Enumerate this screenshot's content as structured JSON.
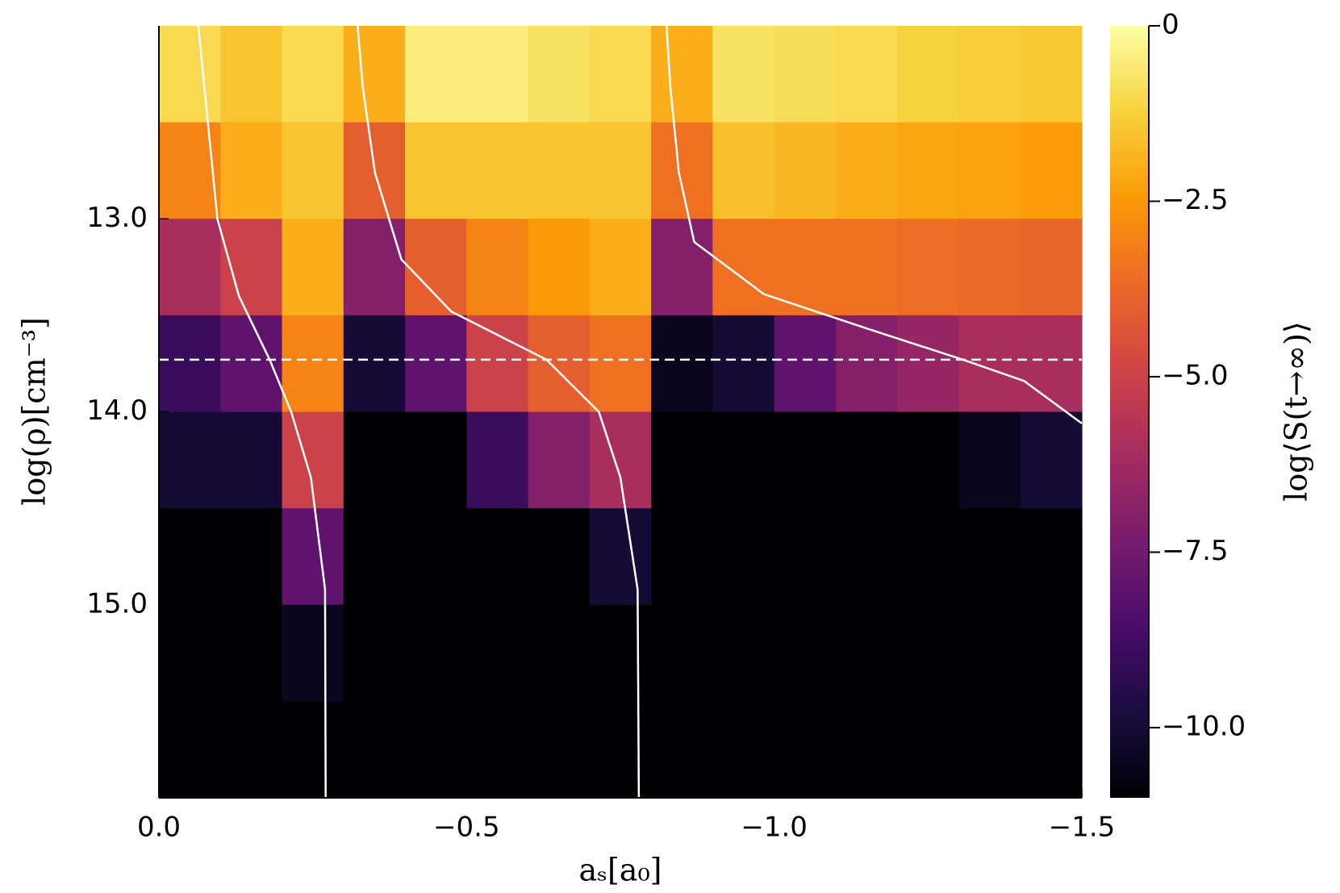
{
  "chart_data": {
    "type": "heatmap",
    "xlabel": "aₛ[a₀]",
    "ylabel": "log(ρ)[cm⁻³]",
    "colorbar_label": "log⟨S(t→∞)⟩",
    "xlim": [
      0,
      -1.5
    ],
    "xticks": [
      {
        "value": 0,
        "label": "0.0"
      },
      {
        "value": -0.5,
        "label": "−0.5"
      },
      {
        "value": -1.0,
        "label": "−1.0"
      },
      {
        "value": -1.5,
        "label": "−1.5"
      }
    ],
    "ylim": [
      12,
      16
    ],
    "y_inverted": true,
    "yticks": [
      {
        "value": 13,
        "label": "13.0"
      },
      {
        "value": 14,
        "label": "14.0"
      },
      {
        "value": 15,
        "label": "15.0"
      }
    ],
    "clim": [
      -11,
      0
    ],
    "cticks": [
      0,
      {
        "value": -2.5,
        "label": "−2.5"
      },
      {
        "value": -5.0,
        "label": "−5.0"
      },
      {
        "value": -7.5,
        "label": "−7.5"
      },
      {
        "value": -10.0,
        "label": "−10.0"
      }
    ],
    "colormap": [
      "#000004",
      "#1b0c41",
      "#4a0c6b",
      "#781c6d",
      "#a52c60",
      "#cf4446",
      "#ed6925",
      "#fb9b06",
      "#f7d13d",
      "#fcffa4"
    ],
    "x_edges": [
      0,
      -0.1,
      -0.2,
      -0.3,
      -0.4,
      -0.5,
      -0.6,
      -0.7,
      -0.8,
      -0.9,
      -1.0,
      -1.1,
      -1.2,
      -1.3,
      -1.4,
      -1.5
    ],
    "y_edges": [
      12,
      12.5,
      13,
      13.5,
      14,
      14.5,
      15,
      15.5,
      16
    ],
    "z": [
      [
        -1,
        -1.5,
        -1,
        -2,
        -0.5,
        -0.5,
        -0.8,
        -1,
        -2,
        -0.8,
        -0.9,
        -1,
        -1.2,
        -1.3,
        -1.4
      ],
      [
        -3,
        -2,
        -1.5,
        -4,
        -1.5,
        -1.5,
        -1.5,
        -1.5,
        -3.5,
        -1.6,
        -1.8,
        -2,
        -2.2,
        -2.3,
        -2.4
      ],
      [
        -6,
        -5,
        -2,
        -7,
        -4,
        -3,
        -2.5,
        -2,
        -7,
        -3.5,
        -3.5,
        -3.5,
        -3.6,
        -3.7,
        -3.8
      ],
      [
        -9,
        -8,
        -3,
        -10,
        -8,
        -5,
        -4,
        -3.5,
        -10.5,
        -10,
        -8,
        -7,
        -6.5,
        -6,
        -6
      ],
      [
        -10,
        -10,
        -5,
        -11,
        -11,
        -9,
        -7,
        -6,
        -11,
        -11,
        -11,
        -11,
        -11,
        -10.5,
        -10
      ],
      [
        -11,
        -11,
        -8,
        -11,
        -11,
        -11,
        -11,
        -10,
        -11,
        -11,
        -11,
        -11,
        -11,
        -11,
        -11
      ],
      [
        -11,
        -11,
        -10.5,
        -11,
        -11,
        -11,
        -11,
        -11,
        -11,
        -11,
        -11,
        -11,
        -11,
        -11,
        -11
      ],
      [
        -11,
        -11,
        -11,
        -11,
        -11,
        -11,
        -11,
        -11,
        -11,
        -11,
        -11,
        -11,
        -11,
        -11,
        -11
      ]
    ],
    "hline": 13.73,
    "line_color": "#ffffff",
    "series": [
      {
        "x": [
          -0.064,
          -0.095,
          -0.13,
          -0.18,
          -0.215,
          -0.247,
          -0.27,
          -0.271
        ],
        "values": [
          12,
          13,
          13.4,
          13.73,
          14,
          14.34,
          14.92,
          16
        ]
      },
      {
        "x": [
          -0.323,
          -0.331,
          -0.351,
          -0.394,
          -0.475,
          -0.63,
          -0.715,
          -0.75,
          -0.778,
          -0.78
        ],
        "values": [
          12,
          12.31,
          12.76,
          13.21,
          13.48,
          13.73,
          14,
          14.34,
          14.92,
          16
        ]
      },
      {
        "x": [
          -0.825,
          -0.831,
          -0.845,
          -0.87,
          -0.983,
          -1.152,
          -1.307,
          -1.406,
          -1.5
        ],
        "values": [
          12,
          12.31,
          12.76,
          13.12,
          13.39,
          13.57,
          13.73,
          13.84,
          14.06
        ]
      }
    ]
  }
}
